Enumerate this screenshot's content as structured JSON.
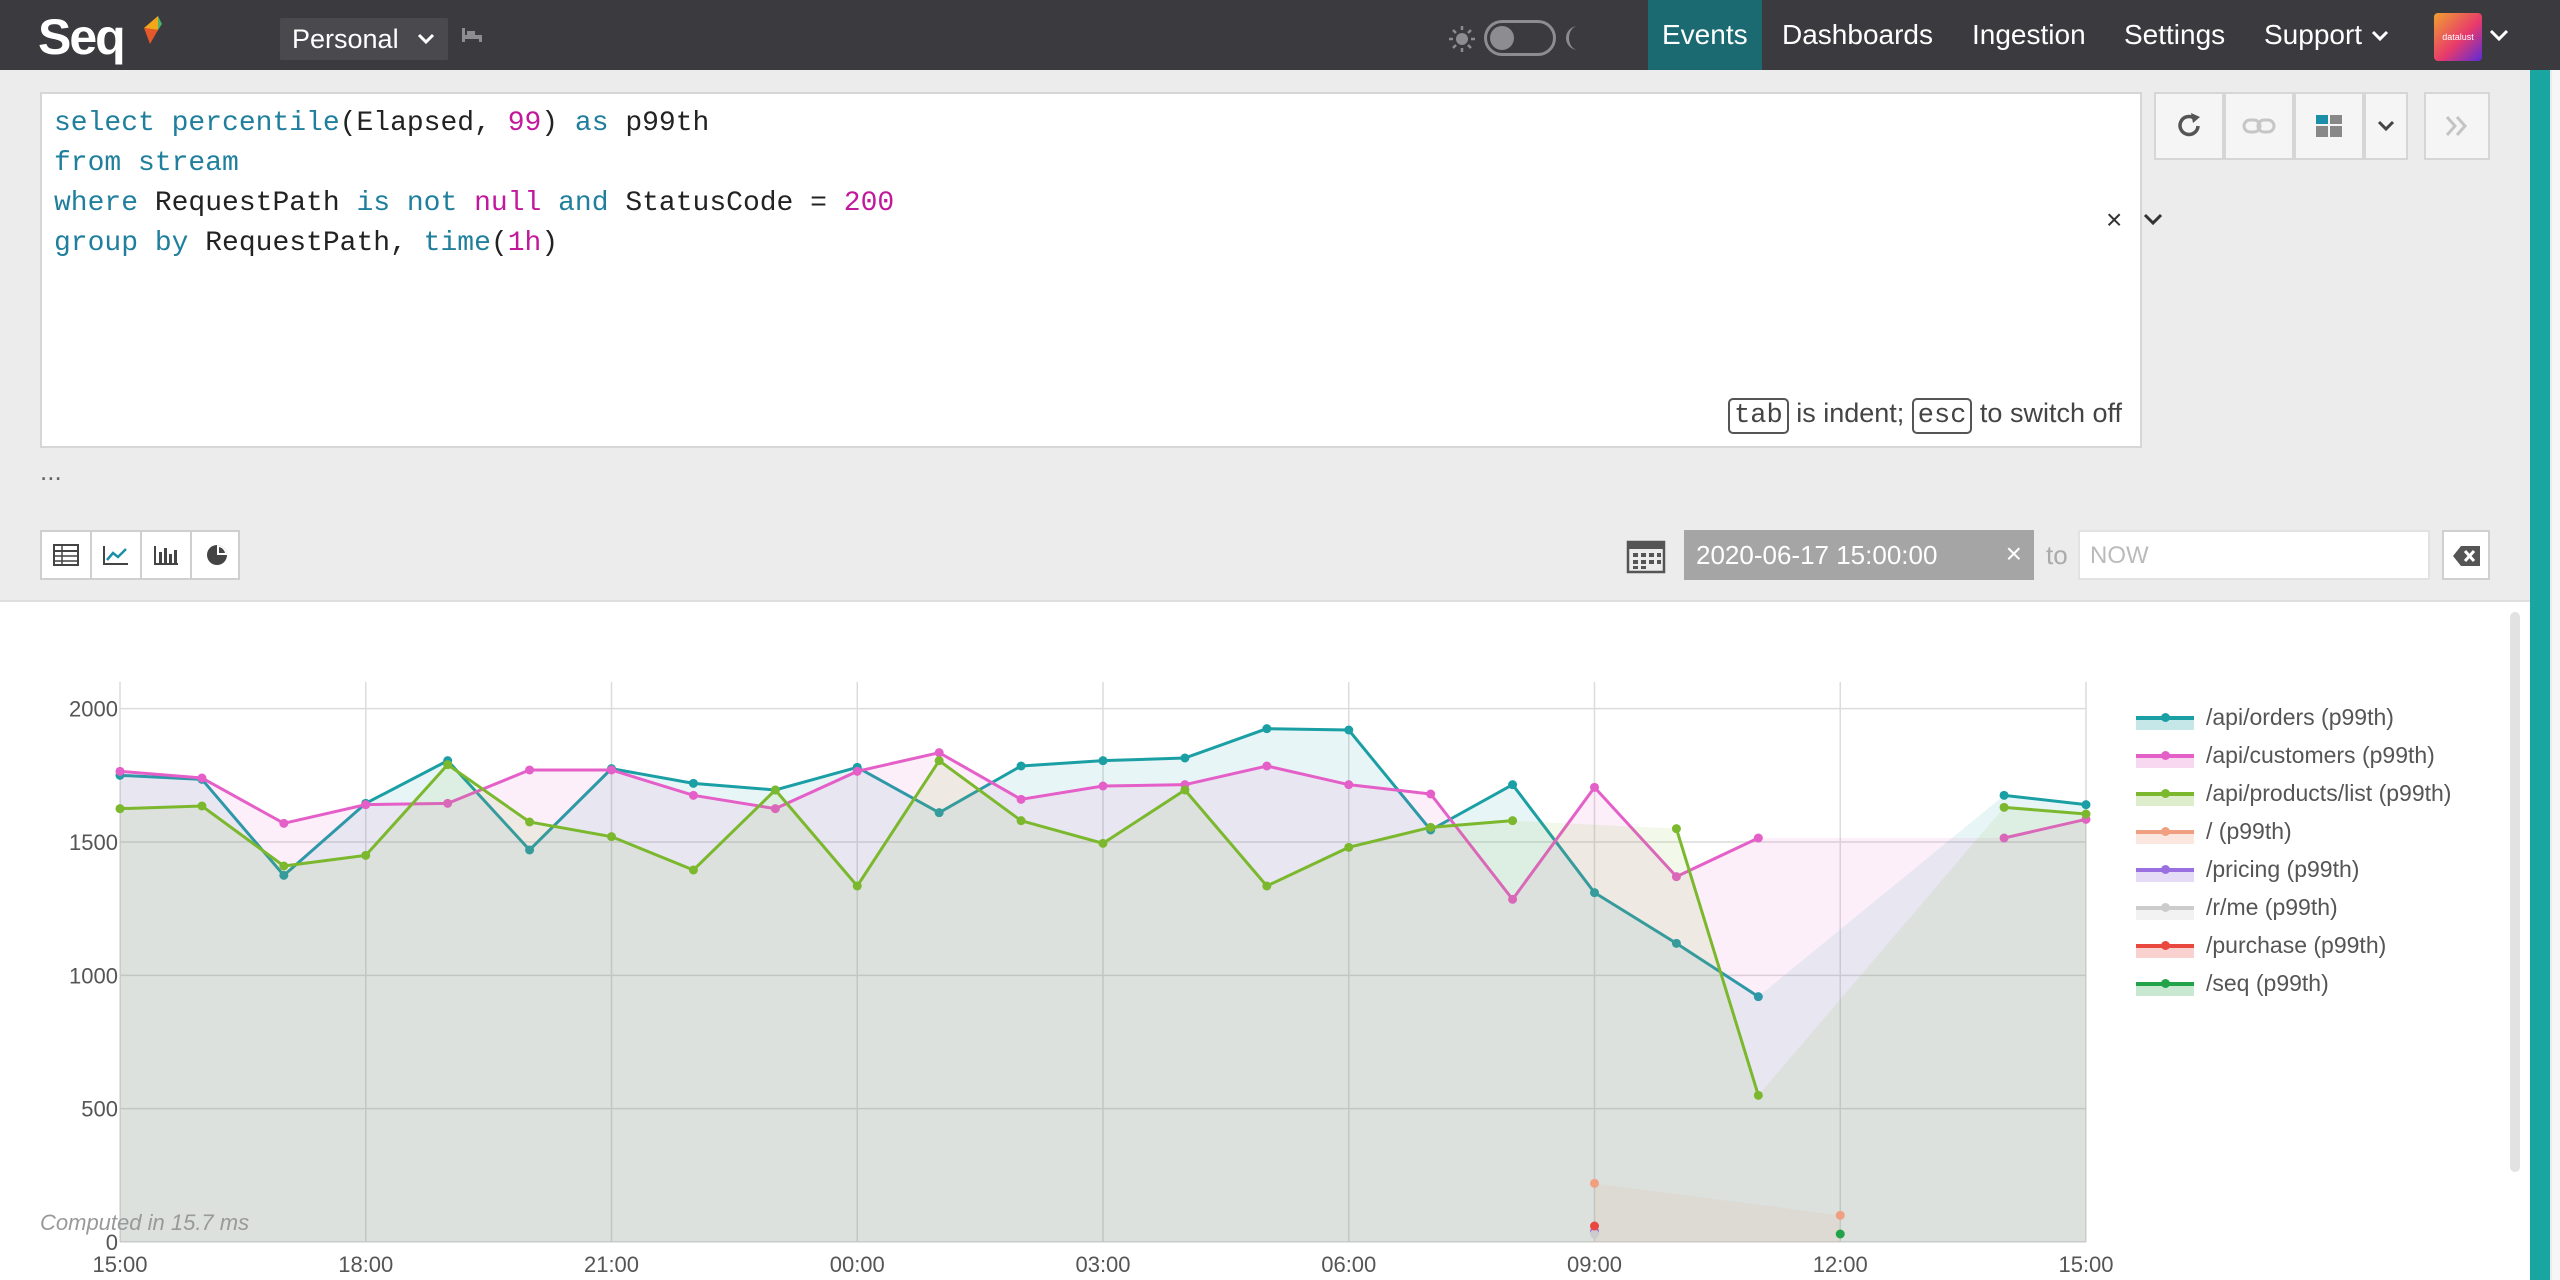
{
  "header": {
    "logo": "Seq",
    "workspace": "Personal",
    "nav": [
      "Events",
      "Dashboards",
      "Ingestion",
      "Settings",
      "Support"
    ],
    "active_nav": "Events",
    "avatar_text": "datalust"
  },
  "query": {
    "lines": [
      [
        {
          "t": "select ",
          "c": "kw"
        },
        {
          "t": "percentile",
          "c": "fn"
        },
        {
          "t": "(Elapsed, ",
          "c": ""
        },
        {
          "t": "99",
          "c": "num"
        },
        {
          "t": ") ",
          "c": ""
        },
        {
          "t": "as",
          "c": "kw"
        },
        {
          "t": " p99th",
          "c": ""
        }
      ],
      [
        {
          "t": "from ",
          "c": "kw"
        },
        {
          "t": "stream",
          "c": "kw"
        }
      ],
      [
        {
          "t": "where ",
          "c": "kw"
        },
        {
          "t": "RequestPath ",
          "c": ""
        },
        {
          "t": "is not ",
          "c": "kw"
        },
        {
          "t": "null ",
          "c": "num"
        },
        {
          "t": "and ",
          "c": "kw"
        },
        {
          "t": "StatusCode = ",
          "c": ""
        },
        {
          "t": "200",
          "c": "num"
        }
      ],
      [
        {
          "t": "group by ",
          "c": "kw"
        },
        {
          "t": "RequestPath, ",
          "c": ""
        },
        {
          "t": "time",
          "c": "fn"
        },
        {
          "t": "(",
          "c": ""
        },
        {
          "t": "1h",
          "c": "num"
        },
        {
          "t": ")",
          "c": ""
        }
      ]
    ],
    "hint_key1": "tab",
    "hint_text1": "is indent;",
    "hint_key2": "esc",
    "hint_text2": "to switch off",
    "clear_symbol": "×",
    "ellipsis": "..."
  },
  "range": {
    "from": "2020-06-17 15:00:00",
    "to_label": "to",
    "to_placeholder": "NOW",
    "clear_symbol": "×"
  },
  "results": {
    "computed": "Computed in 15.7 ms"
  },
  "chart_data": {
    "type": "line",
    "x": [
      "15:00",
      "16:00",
      "17:00",
      "18:00",
      "19:00",
      "20:00",
      "21:00",
      "22:00",
      "23:00",
      "00:00",
      "01:00",
      "02:00",
      "03:00",
      "04:00",
      "05:00",
      "06:00",
      "07:00",
      "08:00",
      "09:00",
      "10:00",
      "11:00",
      "12:00",
      "13:00",
      "14:00",
      "15:00"
    ],
    "xticks": [
      "15:00",
      "18:00",
      "21:00",
      "00:00",
      "03:00",
      "06:00",
      "09:00",
      "12:00",
      "15:00"
    ],
    "yticks": [
      0,
      500,
      1000,
      1500,
      2000
    ],
    "ylim": [
      0,
      2100
    ],
    "grid": true,
    "legend_position": "right",
    "series": [
      {
        "name": "/api/orders (p99th)",
        "color": "#1a9fa5",
        "values": [
          1750,
          1735,
          1375,
          1645,
          1805,
          1470,
          1775,
          1720,
          1695,
          1780,
          1610,
          1785,
          1805,
          1815,
          1925,
          1920,
          1545,
          1715,
          1310,
          1120,
          920,
          null,
          null,
          1675,
          1640
        ]
      },
      {
        "name": "/api/customers (p99th)",
        "color": "#e55fc8",
        "values": [
          1765,
          1740,
          1570,
          1640,
          1645,
          1770,
          1770,
          1675,
          1625,
          1765,
          1835,
          1660,
          1710,
          1715,
          1785,
          1715,
          1680,
          1285,
          1705,
          1370,
          1515,
          null,
          null,
          1515,
          1585
        ]
      },
      {
        "name": "/api/products/list (p99th)",
        "color": "#7cb82e",
        "values": [
          1625,
          1635,
          1410,
          1450,
          1790,
          1575,
          1520,
          1395,
          1695,
          1335,
          1805,
          1580,
          1495,
          1695,
          1335,
          1480,
          1555,
          1580,
          null,
          1550,
          550,
          null,
          null,
          1630,
          1605
        ]
      },
      {
        "name": "/ (p99th)",
        "color": "#f0a080",
        "values": [
          null,
          null,
          null,
          null,
          null,
          null,
          null,
          null,
          null,
          null,
          null,
          null,
          null,
          null,
          null,
          null,
          null,
          null,
          220,
          null,
          null,
          100,
          null,
          null,
          null
        ]
      },
      {
        "name": "/pricing (p99th)",
        "color": "#9a6fe0",
        "values": [
          null,
          null,
          null,
          null,
          null,
          null,
          null,
          null,
          null,
          null,
          null,
          null,
          null,
          null,
          null,
          null,
          null,
          null,
          40,
          null,
          null,
          null,
          null,
          null,
          null
        ]
      },
      {
        "name": "/r/me (p99th)",
        "color": "#cccccc",
        "values": [
          null,
          null,
          null,
          null,
          null,
          null,
          null,
          null,
          null,
          null,
          null,
          null,
          null,
          null,
          null,
          null,
          null,
          null,
          30,
          null,
          null,
          null,
          null,
          null,
          null
        ]
      },
      {
        "name": "/purchase (p99th)",
        "color": "#e8483e",
        "values": [
          null,
          null,
          null,
          null,
          null,
          null,
          null,
          null,
          null,
          null,
          null,
          null,
          null,
          null,
          null,
          null,
          null,
          null,
          60,
          null,
          null,
          null,
          null,
          null,
          null
        ]
      },
      {
        "name": "/seq (p99th)",
        "color": "#22a34a",
        "values": [
          null,
          null,
          null,
          null,
          null,
          null,
          null,
          null,
          null,
          null,
          null,
          null,
          null,
          null,
          null,
          null,
          null,
          null,
          null,
          null,
          null,
          30,
          null,
          null,
          null
        ]
      }
    ]
  }
}
